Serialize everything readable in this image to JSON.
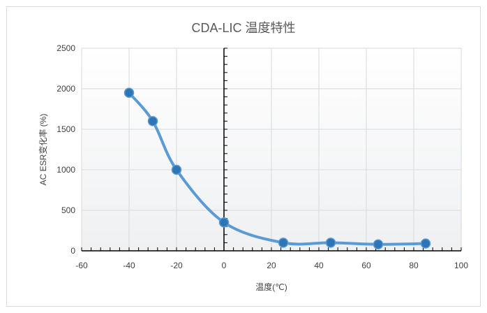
{
  "chart_data": {
    "type": "line",
    "title": "CDA-LIC 温度特性",
    "xlabel": "温度(℃)",
    "ylabel": "AC ESR变化率 (%)",
    "xlim": [
      -60,
      100
    ],
    "ylim": [
      0,
      2500
    ],
    "x_ticks": [
      "-60",
      "-40",
      "-20",
      "0",
      "20",
      "40",
      "60",
      "80",
      "100"
    ],
    "y_ticks": [
      "0",
      "500",
      "1000",
      "1500",
      "2000",
      "2500"
    ],
    "grid": true,
    "legend": "none",
    "series": [
      {
        "x": [
          -40,
          -30,
          -20,
          0,
          25,
          45,
          65,
          85
        ],
        "y": [
          1950,
          1600,
          1000,
          350,
          100,
          100,
          80,
          90
        ],
        "color": "#5b9bd5",
        "marker_fill": "#2e75b6",
        "smooth": true
      }
    ]
  }
}
